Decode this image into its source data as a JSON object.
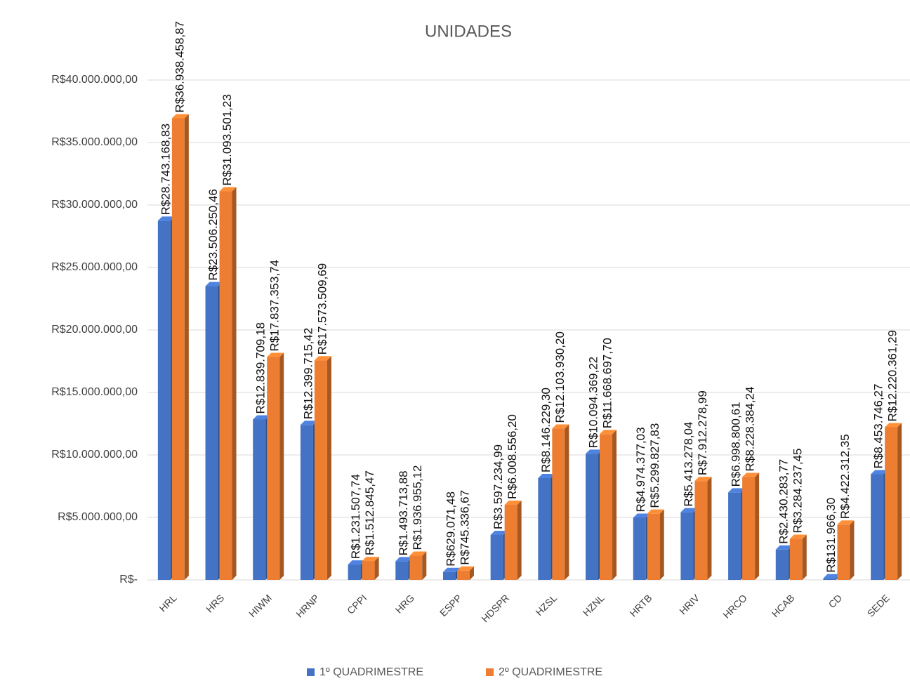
{
  "chart_data": {
    "type": "bar3d",
    "title": "UNIDADES",
    "categories": [
      "HRL",
      "HRS",
      "HIWM",
      "HRNP",
      "CPPI",
      "HRG",
      "ESPP",
      "HDSPR",
      "HZSL",
      "HZNL",
      "HRTB",
      "HRIV",
      "HRCO",
      "HCAB",
      "CD",
      "SEDE"
    ],
    "series": [
      {
        "name": "1º QUADRIMESTRE",
        "color": "#4472c4",
        "values": [
          28743168.83,
          23506250.46,
          12839709.18,
          12399715.42,
          1231507.74,
          1493713.88,
          629071.48,
          3597234.99,
          8146229.3,
          10094369.22,
          4974377.03,
          5413278.04,
          6998800.61,
          2430283.77,
          131966.3,
          8453746.27
        ],
        "value_labels": [
          "R$28.743.168,83",
          "R$23.506.250,46",
          "R$12.839.709,18",
          "R$12.399.715,42",
          "R$1.231.507,74",
          "R$1.493.713,88",
          "R$629.071,48",
          "R$3.597.234,99",
          "R$8.146.229,30",
          "R$10.094.369,22",
          "R$4.974.377,03",
          "R$5.413.278,04",
          "R$6.998.800,61",
          "R$2.430.283,77",
          "R$131.966,30",
          "R$8.453.746,27"
        ]
      },
      {
        "name": "2º QUADRIMESTRE",
        "color": "#ed7d31",
        "values": [
          36938458.87,
          31093501.23,
          17837353.74,
          17573509.69,
          1512845.47,
          1936955.12,
          745336.67,
          6008556.2,
          12103930.2,
          11668697.7,
          5299827.83,
          7912278.99,
          8228384.24,
          3284237.45,
          4422312.35,
          12220361.29
        ],
        "value_labels": [
          "R$36.938.458,87",
          "R$31.093.501,23",
          "R$17.837.353,74",
          "R$17.573.509,69",
          "R$1.512.845,47",
          "R$1.936.955,12",
          "R$745.336,67",
          "R$6.008.556,20",
          "R$12.103.930,20",
          "R$11.668.697,70",
          "R$5.299.827,83",
          "R$7.912.278,99",
          "R$8.228.384,24",
          "R$3.284.237,45",
          "R$4.422.312,35",
          "R$12.220.361,29"
        ]
      }
    ],
    "ylim": [
      0,
      40000000
    ],
    "yticks": [
      {
        "value": 0,
        "label": "R$-"
      },
      {
        "value": 5000000,
        "label": "R$5.000.000,00"
      },
      {
        "value": 10000000,
        "label": "R$10.000.000,00"
      },
      {
        "value": 15000000,
        "label": "R$15.000.000,00"
      },
      {
        "value": 20000000,
        "label": "R$20.000.000,00"
      },
      {
        "value": 25000000,
        "label": "R$25.000.000,00"
      },
      {
        "value": 30000000,
        "label": "R$30.000.000,00"
      },
      {
        "value": 35000000,
        "label": "R$35.000.000,00"
      },
      {
        "value": 40000000,
        "label": "R$40.000.000,00"
      }
    ],
    "grid": true,
    "legend": "bottom"
  }
}
